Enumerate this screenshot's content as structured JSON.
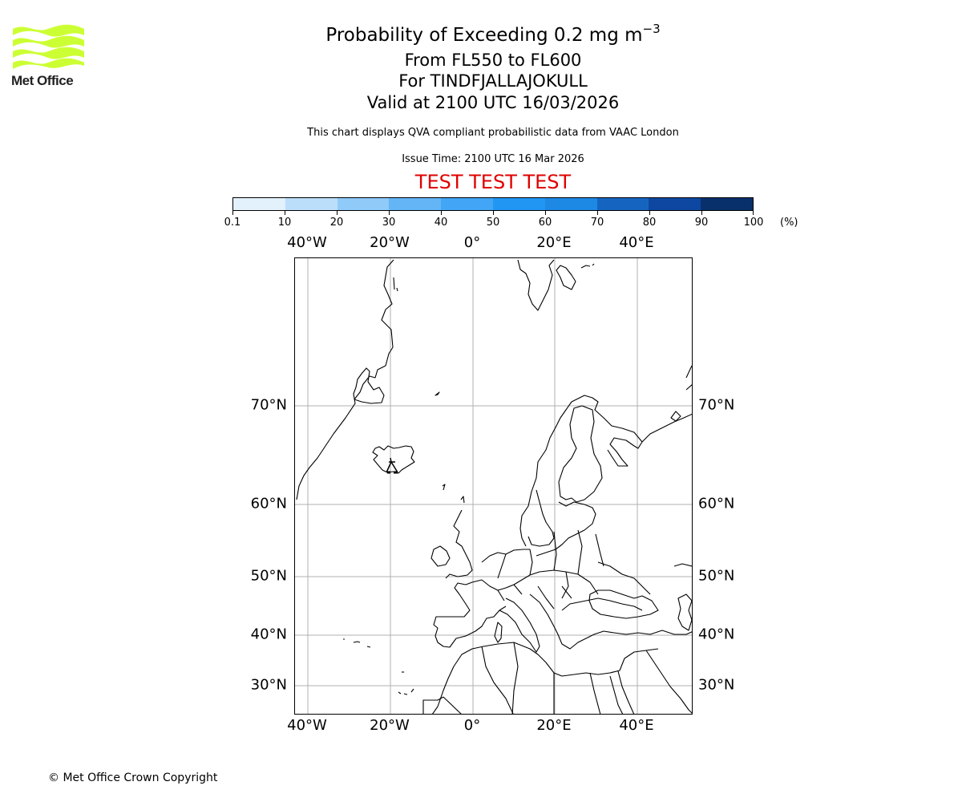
{
  "header": {
    "logo": {
      "name": "met-office-logo",
      "text": "Met Office",
      "color": "#ccff33"
    },
    "title_main": "Probability of Exceeding 0.2 mg m",
    "title_main_superscript": "−3",
    "title_level": "From FL550 to FL600",
    "title_volcano": "For TINDFJALLAJOKULL",
    "title_valid": "Valid at 2100 UTC 16/03/2026",
    "subtitle": "This chart displays QVA compliant probabilistic data from VAAC London",
    "issue_time": "Issue Time: 2100 UTC 16 Mar 2026",
    "test_banner": "TEST TEST TEST",
    "test_banner_color": "#e00000"
  },
  "colorbar": {
    "unit": "(%)",
    "tick_labels": [
      "0.1",
      "10",
      "20",
      "30",
      "40",
      "50",
      "60",
      "70",
      "80",
      "90",
      "100"
    ],
    "colors": [
      "#e3f1fd",
      "#bbdefb",
      "#90caf9",
      "#64b5f6",
      "#42a5f5",
      "#2196f3",
      "#1e88e5",
      "#1565c0",
      "#0d47a1",
      "#08306b"
    ]
  },
  "map": {
    "projection_extent": {
      "lon_min": -43,
      "lon_max": 53,
      "lat_min": 25,
      "lat_max": 83
    },
    "lon_labels_top": [
      "40°W",
      "20°W",
      "0°",
      "20°E",
      "40°E"
    ],
    "lon_labels_bottom": [
      "40°W",
      "20°W",
      "0°",
      "20°E",
      "40°E"
    ],
    "lat_labels_left": [
      "70°N",
      "60°N",
      "50°N",
      "40°N",
      "30°N"
    ],
    "lat_labels_right": [
      "70°N",
      "60°N",
      "50°N",
      "40°N",
      "30°N"
    ],
    "gridline_color": "#b0b0b0",
    "coastline_color": "#000000",
    "volcano_marker": {
      "name": "Tindfjallajokull",
      "symbol": "volcano-triangle"
    },
    "probability_fill": "none visible"
  },
  "chart_data": {
    "type": "heatmap",
    "title": "Probability of Exceeding 0.2 mg m−3",
    "subtitle": "From FL550 to FL600 / For TINDFJALLAJOKULL / Valid at 2100 UTC 16/03/2026",
    "legend": {
      "title": "(%)",
      "bins": [
        0.1,
        10,
        20,
        30,
        40,
        50,
        60,
        70,
        80,
        90,
        100
      ],
      "position": "top"
    },
    "x_ticks": [
      "40°W",
      "20°W",
      "0°",
      "20°E",
      "40°E"
    ],
    "y_ticks": [
      "70°N",
      "60°N",
      "50°N",
      "40°N",
      "30°N"
    ],
    "grid": true,
    "values": []
  },
  "footer": {
    "copyright": "© Met Office Crown Copyright"
  }
}
